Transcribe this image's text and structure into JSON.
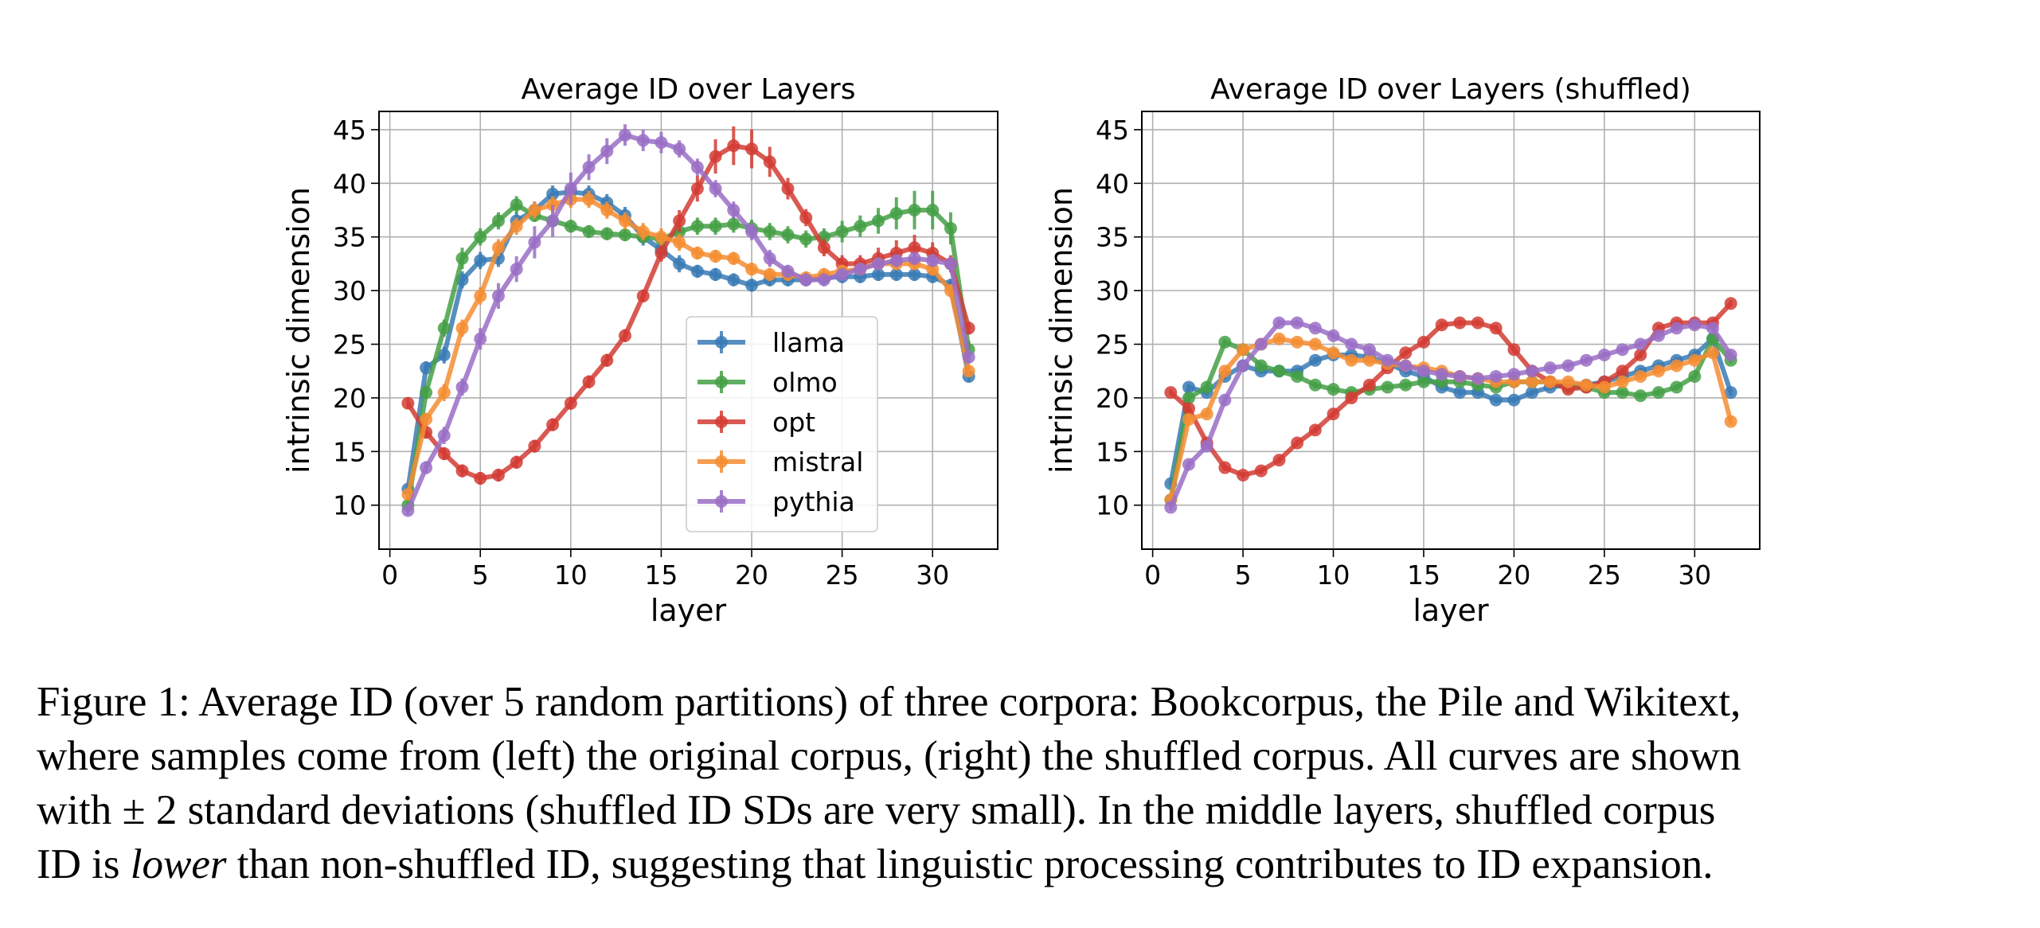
{
  "figure": {
    "caption_lines": [
      "Figure 1: Average ID (over 5 random partitions) of three corpora: Bookcorpus, the Pile and Wikitext,",
      "where samples come from (left) the original corpus, (right) the shuffled corpus. All curves are shown",
      "with ± 2 standard deviations (shuffled ID SDs are very small). In the middle layers, shuffled corpus"
    ],
    "caption_last": {
      "before": "ID is ",
      "emphasis": "lower",
      "after": " than non-shuffled ID, suggesting that linguistic processing contributes to ID expansion."
    }
  },
  "chart_data": [
    {
      "type": "line",
      "title": "Average ID over Layers",
      "xlabel": "layer",
      "ylabel": "intrinsic dimension",
      "xlim": [
        -0.6,
        33.6
      ],
      "ylim": [
        5.9,
        46.7
      ],
      "xticks": [
        0,
        5,
        10,
        15,
        20,
        25,
        30
      ],
      "yticks": [
        10,
        15,
        20,
        25,
        30,
        35,
        40,
        45
      ],
      "grid": true,
      "legend": "lower-center",
      "x": [
        1,
        2,
        3,
        4,
        5,
        6,
        7,
        8,
        9,
        10,
        11,
        12,
        13,
        14,
        15,
        16,
        17,
        18,
        19,
        20,
        21,
        22,
        23,
        24,
        25,
        26,
        27,
        28,
        29,
        30,
        31,
        32
      ],
      "series": [
        {
          "name": "llama",
          "color": "#3a7bb5",
          "values": [
            11.5,
            22.8,
            24.0,
            31.0,
            32.8,
            33.0,
            36.5,
            37.5,
            39.0,
            39.2,
            39.0,
            38.2,
            37.0,
            35.0,
            33.8,
            32.5,
            31.8,
            31.5,
            31.0,
            30.5,
            31.0,
            31.0,
            31.0,
            31.2,
            31.3,
            31.3,
            31.5,
            31.5,
            31.5,
            31.3,
            30.5,
            22.0
          ],
          "errors": [
            0.4,
            0.6,
            0.8,
            0.8,
            0.8,
            0.8,
            0.8,
            0.8,
            0.8,
            0.8,
            0.8,
            0.8,
            0.8,
            0.8,
            0.8,
            0.8,
            0.6,
            0.6,
            0.6,
            0.6,
            0.6,
            0.6,
            0.6,
            0.6,
            0.6,
            0.6,
            0.6,
            0.6,
            0.6,
            0.6,
            0.6,
            0.5
          ]
        },
        {
          "name": "olmo",
          "color": "#45a046",
          "values": [
            10.0,
            20.5,
            26.5,
            33.0,
            35.0,
            36.5,
            38.0,
            37.0,
            36.5,
            36.0,
            35.5,
            35.3,
            35.2,
            35.0,
            34.8,
            35.5,
            36.0,
            36.0,
            36.2,
            35.8,
            35.5,
            35.2,
            34.8,
            35.0,
            35.5,
            36.0,
            36.5,
            37.2,
            37.5,
            37.5,
            35.8,
            24.5
          ],
          "errors": [
            0.4,
            0.6,
            0.8,
            1.0,
            0.8,
            0.8,
            0.8,
            0.6,
            0.6,
            0.6,
            0.6,
            0.6,
            0.6,
            0.6,
            0.6,
            0.6,
            0.8,
            0.8,
            0.8,
            0.8,
            0.8,
            0.8,
            0.8,
            0.8,
            1.0,
            1.0,
            1.2,
            1.5,
            1.8,
            1.8,
            1.5,
            0.8
          ]
        },
        {
          "name": "opt",
          "color": "#d23d35",
          "values": [
            19.5,
            16.8,
            14.8,
            13.2,
            12.5,
            12.8,
            14.0,
            15.5,
            17.5,
            19.5,
            21.5,
            23.5,
            25.8,
            29.5,
            33.5,
            36.5,
            39.5,
            42.5,
            43.5,
            43.2,
            42.0,
            39.5,
            36.8,
            34.0,
            32.5,
            32.5,
            33.0,
            33.5,
            34.0,
            33.5,
            32.5,
            26.5
          ],
          "errors": [
            0.5,
            0.6,
            0.6,
            0.6,
            0.6,
            0.6,
            0.6,
            0.6,
            0.6,
            0.6,
            0.6,
            0.6,
            0.6,
            0.6,
            0.8,
            1.0,
            1.2,
            1.6,
            1.8,
            1.8,
            1.4,
            1.0,
            0.8,
            0.8,
            0.8,
            0.8,
            1.0,
            1.2,
            1.2,
            1.0,
            0.8,
            0.6
          ]
        },
        {
          "name": "mistral",
          "color": "#f58d32",
          "values": [
            11.0,
            18.0,
            20.5,
            26.5,
            29.5,
            34.0,
            36.0,
            37.5,
            38.0,
            38.5,
            38.5,
            37.5,
            36.5,
            35.5,
            35.0,
            34.5,
            33.5,
            33.2,
            33.0,
            32.0,
            31.5,
            31.5,
            31.2,
            31.5,
            31.8,
            32.0,
            32.5,
            32.5,
            32.5,
            32.0,
            30.0,
            22.5
          ],
          "errors": [
            0.4,
            0.6,
            0.8,
            0.8,
            0.8,
            0.8,
            0.8,
            0.8,
            0.8,
            0.8,
            0.8,
            0.8,
            0.8,
            0.8,
            0.8,
            0.8,
            0.6,
            0.6,
            0.6,
            0.6,
            0.6,
            0.6,
            0.6,
            0.6,
            0.6,
            0.6,
            0.6,
            0.6,
            0.6,
            0.6,
            0.6,
            0.5
          ]
        },
        {
          "name": "pythia",
          "color": "#9a6fc6",
          "values": [
            9.5,
            13.5,
            16.5,
            21.0,
            25.5,
            29.5,
            32.0,
            34.5,
            36.5,
            39.5,
            41.5,
            43.0,
            44.5,
            44.0,
            43.8,
            43.2,
            41.5,
            39.5,
            37.5,
            35.5,
            33.0,
            31.8,
            31.0,
            31.0,
            31.5,
            32.0,
            32.5,
            32.8,
            33.0,
            32.8,
            32.5,
            23.8
          ],
          "errors": [
            0.4,
            0.6,
            0.8,
            0.8,
            1.0,
            1.2,
            1.2,
            1.5,
            1.5,
            1.5,
            1.2,
            1.2,
            1.0,
            1.0,
            1.0,
            0.8,
            0.8,
            0.8,
            0.8,
            0.8,
            0.8,
            0.6,
            0.6,
            0.6,
            0.6,
            0.6,
            0.6,
            0.6,
            0.6,
            0.6,
            0.6,
            0.6
          ]
        }
      ]
    },
    {
      "type": "line",
      "title": "Average ID over Layers (shuffled)",
      "xlabel": "layer",
      "ylabel": "intrinsic dimension",
      "xlim": [
        -0.6,
        33.6
      ],
      "ylim": [
        5.9,
        46.7
      ],
      "xticks": [
        0,
        5,
        10,
        15,
        20,
        25,
        30
      ],
      "yticks": [
        10,
        15,
        20,
        25,
        30,
        35,
        40,
        45
      ],
      "grid": true,
      "legend": "",
      "x": [
        1,
        2,
        3,
        4,
        5,
        6,
        7,
        8,
        9,
        10,
        11,
        12,
        13,
        14,
        15,
        16,
        17,
        18,
        19,
        20,
        21,
        22,
        23,
        24,
        25,
        26,
        27,
        28,
        29,
        30,
        31,
        32
      ],
      "series": [
        {
          "name": "llama",
          "color": "#3a7bb5",
          "values": [
            12.0,
            21.0,
            20.5,
            22.0,
            23.0,
            22.5,
            22.5,
            22.5,
            23.5,
            24.0,
            24.0,
            23.8,
            23.2,
            22.5,
            22.0,
            21.0,
            20.5,
            20.5,
            19.8,
            19.8,
            20.5,
            21.0,
            21.2,
            21.2,
            21.5,
            22.0,
            22.5,
            23.0,
            23.5,
            24.0,
            25.5,
            20.5
          ],
          "errors": [
            0.3,
            0.3,
            0.3,
            0.3,
            0.3,
            0.3,
            0.3,
            0.3,
            0.3,
            0.3,
            0.3,
            0.3,
            0.3,
            0.3,
            0.3,
            0.3,
            0.3,
            0.3,
            0.3,
            0.3,
            0.3,
            0.3,
            0.3,
            0.3,
            0.3,
            0.3,
            0.3,
            0.3,
            0.3,
            0.3,
            0.3,
            0.3
          ]
        },
        {
          "name": "olmo",
          "color": "#45a046",
          "values": [
            10.5,
            20.0,
            21.0,
            25.2,
            24.5,
            23.0,
            22.5,
            22.0,
            21.2,
            20.8,
            20.5,
            20.8,
            21.0,
            21.2,
            21.5,
            21.5,
            21.5,
            21.2,
            21.0,
            21.5,
            21.5,
            21.5,
            21.0,
            21.0,
            20.5,
            20.5,
            20.2,
            20.5,
            21.0,
            22.0,
            25.5,
            23.5
          ],
          "errors": [
            0.3,
            0.3,
            0.3,
            0.3,
            0.3,
            0.3,
            0.3,
            0.3,
            0.3,
            0.3,
            0.3,
            0.3,
            0.3,
            0.3,
            0.3,
            0.3,
            0.3,
            0.3,
            0.3,
            0.3,
            0.3,
            0.3,
            0.3,
            0.3,
            0.3,
            0.3,
            0.3,
            0.3,
            0.3,
            0.3,
            0.4,
            0.3
          ]
        },
        {
          "name": "opt",
          "color": "#d23d35",
          "values": [
            20.5,
            19.0,
            15.8,
            13.5,
            12.8,
            13.2,
            14.2,
            15.8,
            17.0,
            18.5,
            20.0,
            21.2,
            22.8,
            24.2,
            25.2,
            26.8,
            27.0,
            27.0,
            26.5,
            24.5,
            22.5,
            21.5,
            20.8,
            21.0,
            21.5,
            22.5,
            24.0,
            26.5,
            27.0,
            27.0,
            27.0,
            28.8
          ],
          "errors": [
            0.3,
            0.3,
            0.3,
            0.3,
            0.3,
            0.3,
            0.3,
            0.3,
            0.3,
            0.3,
            0.3,
            0.3,
            0.3,
            0.3,
            0.3,
            0.3,
            0.3,
            0.3,
            0.3,
            0.3,
            0.3,
            0.3,
            0.3,
            0.3,
            0.3,
            0.3,
            0.3,
            0.3,
            0.3,
            0.3,
            0.3,
            0.3
          ]
        },
        {
          "name": "mistral",
          "color": "#f58d32",
          "values": [
            10.5,
            18.0,
            18.5,
            22.5,
            24.5,
            25.0,
            25.5,
            25.2,
            25.0,
            24.2,
            23.5,
            23.5,
            23.2,
            23.0,
            22.8,
            22.5,
            22.0,
            21.8,
            21.5,
            21.5,
            21.5,
            21.5,
            21.5,
            21.2,
            21.0,
            21.5,
            22.0,
            22.5,
            23.0,
            23.5,
            24.2,
            17.8
          ],
          "errors": [
            0.3,
            0.3,
            0.3,
            0.3,
            0.3,
            0.3,
            0.3,
            0.3,
            0.3,
            0.3,
            0.3,
            0.3,
            0.3,
            0.3,
            0.3,
            0.3,
            0.3,
            0.3,
            0.3,
            0.3,
            0.3,
            0.3,
            0.3,
            0.3,
            0.3,
            0.3,
            0.3,
            0.3,
            0.3,
            0.3,
            0.3,
            0.3
          ]
        },
        {
          "name": "pythia",
          "color": "#9a6fc6",
          "values": [
            9.8,
            13.8,
            15.5,
            19.8,
            23.0,
            25.0,
            27.0,
            27.0,
            26.5,
            25.8,
            25.0,
            24.5,
            23.5,
            23.0,
            22.5,
            22.2,
            22.0,
            21.8,
            22.0,
            22.2,
            22.5,
            22.8,
            23.0,
            23.5,
            24.0,
            24.5,
            25.0,
            25.8,
            26.5,
            26.8,
            26.5,
            24.0
          ],
          "errors": [
            0.3,
            0.3,
            0.3,
            0.3,
            0.3,
            0.3,
            0.3,
            0.3,
            0.3,
            0.3,
            0.3,
            0.3,
            0.3,
            0.3,
            0.3,
            0.3,
            0.3,
            0.3,
            0.3,
            0.3,
            0.3,
            0.3,
            0.3,
            0.3,
            0.3,
            0.3,
            0.3,
            0.3,
            0.3,
            0.3,
            0.3,
            0.3
          ]
        }
      ]
    }
  ]
}
